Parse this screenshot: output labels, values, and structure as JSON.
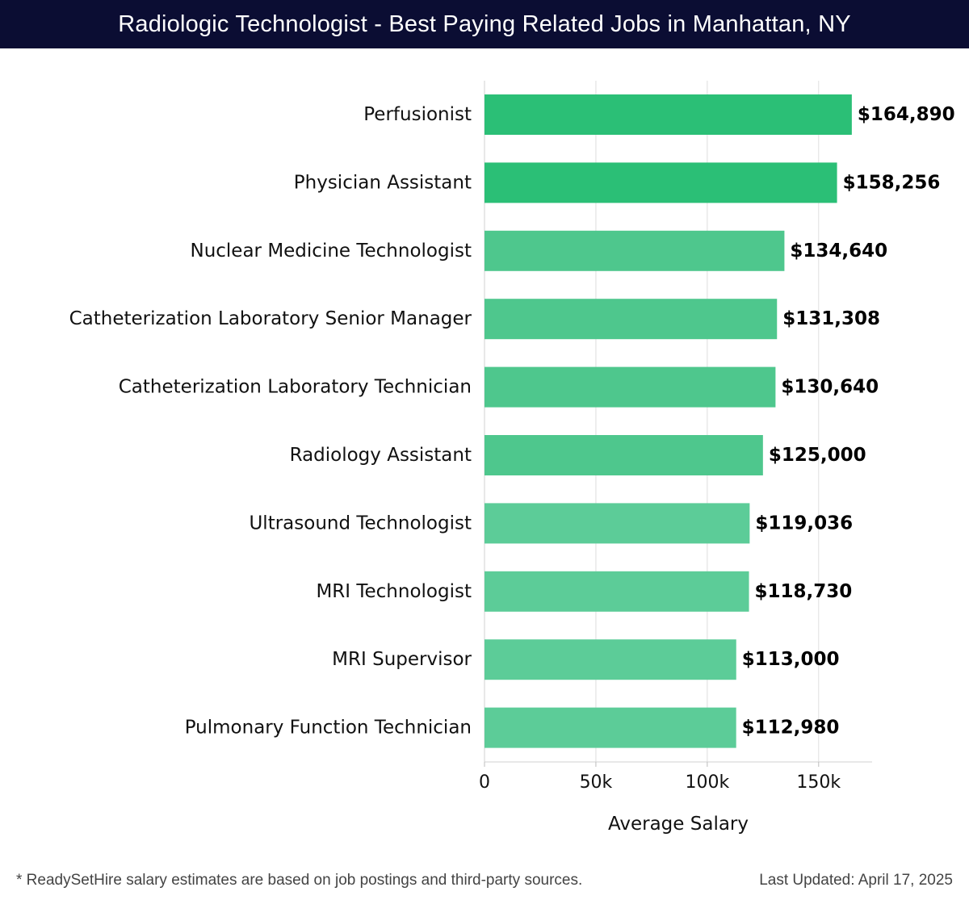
{
  "header": {
    "title": "Radiologic Technologist - Best Paying Related Jobs in Manhattan, NY"
  },
  "chart_data": {
    "type": "bar",
    "orientation": "horizontal",
    "categories": [
      "Perfusionist",
      "Physician Assistant",
      "Nuclear Medicine Technologist",
      "Catheterization Laboratory Senior Manager",
      "Catheterization Laboratory Technician",
      "Radiology Assistant",
      "Ultrasound Technologist",
      "MRI Technologist",
      "MRI Supervisor",
      "Pulmonary Function Technician"
    ],
    "values": [
      164890,
      158256,
      134640,
      131308,
      130640,
      125000,
      119036,
      118730,
      113000,
      112980
    ],
    "value_labels": [
      "$164,890",
      "$158,256",
      "$134,640",
      "$131,308",
      "$130,640",
      "$125,000",
      "$119,036",
      "$118,730",
      "$113,000",
      "$112,980"
    ],
    "xlabel": "Average Salary",
    "xlim": [
      0,
      174000
    ],
    "x_ticks": [
      0,
      50000,
      100000,
      150000
    ],
    "x_tick_labels": [
      "0",
      "50k",
      "100k",
      "150k"
    ],
    "grid": true,
    "colors": {
      "bar_top": "#2bbf76",
      "bar": "#4ec78d",
      "bar_light": "#5ccc98"
    }
  },
  "footer": {
    "note": "* ReadySetHire salary estimates are based on job postings and third-party sources.",
    "updated": "Last Updated: April 17, 2025"
  }
}
